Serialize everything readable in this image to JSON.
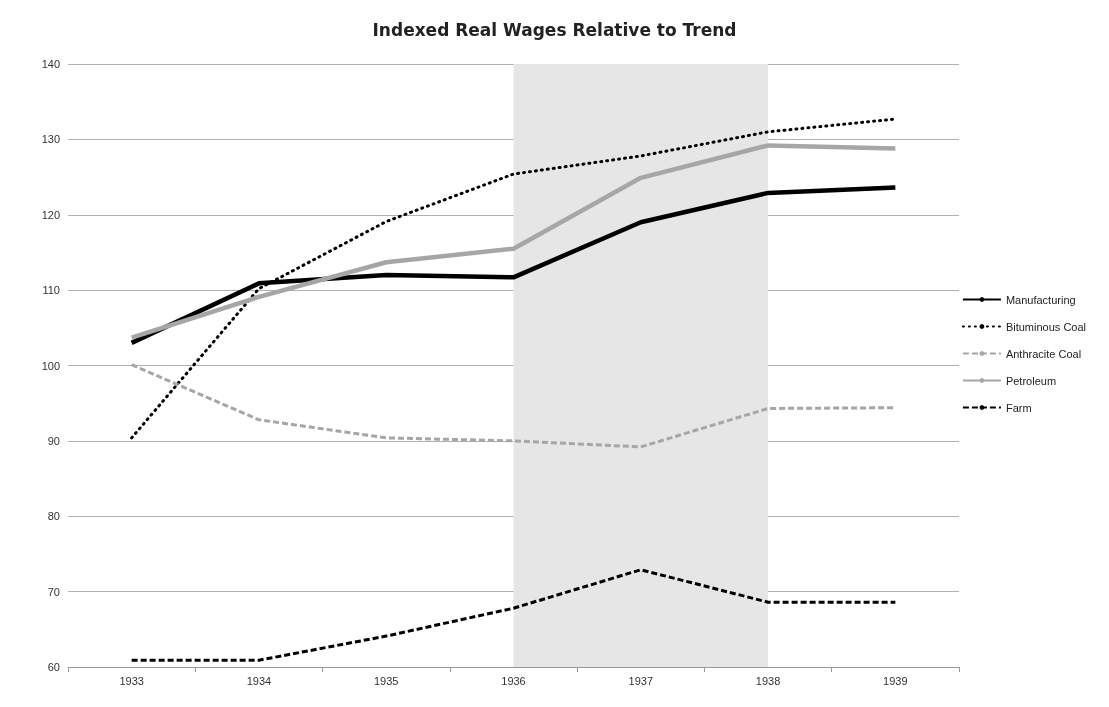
{
  "chart_data": {
    "type": "line",
    "title": "Indexed Real Wages Relative to Trend",
    "categories": [
      "1933",
      "1934",
      "1935",
      "1936",
      "1937",
      "1938",
      "1939"
    ],
    "series": [
      {
        "name": "Manufacturing",
        "color": "#000000",
        "line_style": "solid",
        "values": [
          103.0,
          110.9,
          112.0,
          111.7,
          119.0,
          122.9,
          123.6
        ]
      },
      {
        "name": "Bituminous Coal",
        "color": "#000000",
        "line_style": "dotted",
        "values": [
          90.4,
          110.2,
          119.1,
          125.4,
          127.8,
          131.0,
          132.7
        ]
      },
      {
        "name": "Anthracite Coal",
        "color": "#a6a6a6",
        "line_style": "dashed",
        "values": [
          100.1,
          92.8,
          90.4,
          90.0,
          89.2,
          94.3,
          94.4
        ]
      },
      {
        "name": "Petroleum",
        "color": "#a6a6a6",
        "line_style": "solid",
        "values": [
          103.7,
          109.1,
          113.7,
          115.5,
          124.9,
          129.2,
          128.8
        ]
      },
      {
        "name": "Farm",
        "color": "#000000",
        "line_style": "dashed",
        "values": [
          60.9,
          60.9,
          64.1,
          67.8,
          72.9,
          68.6,
          68.6
        ]
      }
    ],
    "bands": [
      {
        "axis": "x",
        "from": "1936",
        "to": "1938",
        "color": "#e6e6e6"
      }
    ],
    "ylim": [
      60,
      140
    ],
    "yticks": [
      60,
      70,
      80,
      90,
      100,
      110,
      120,
      130,
      140
    ],
    "grid": "y",
    "legend": "right",
    "marker": "none"
  }
}
